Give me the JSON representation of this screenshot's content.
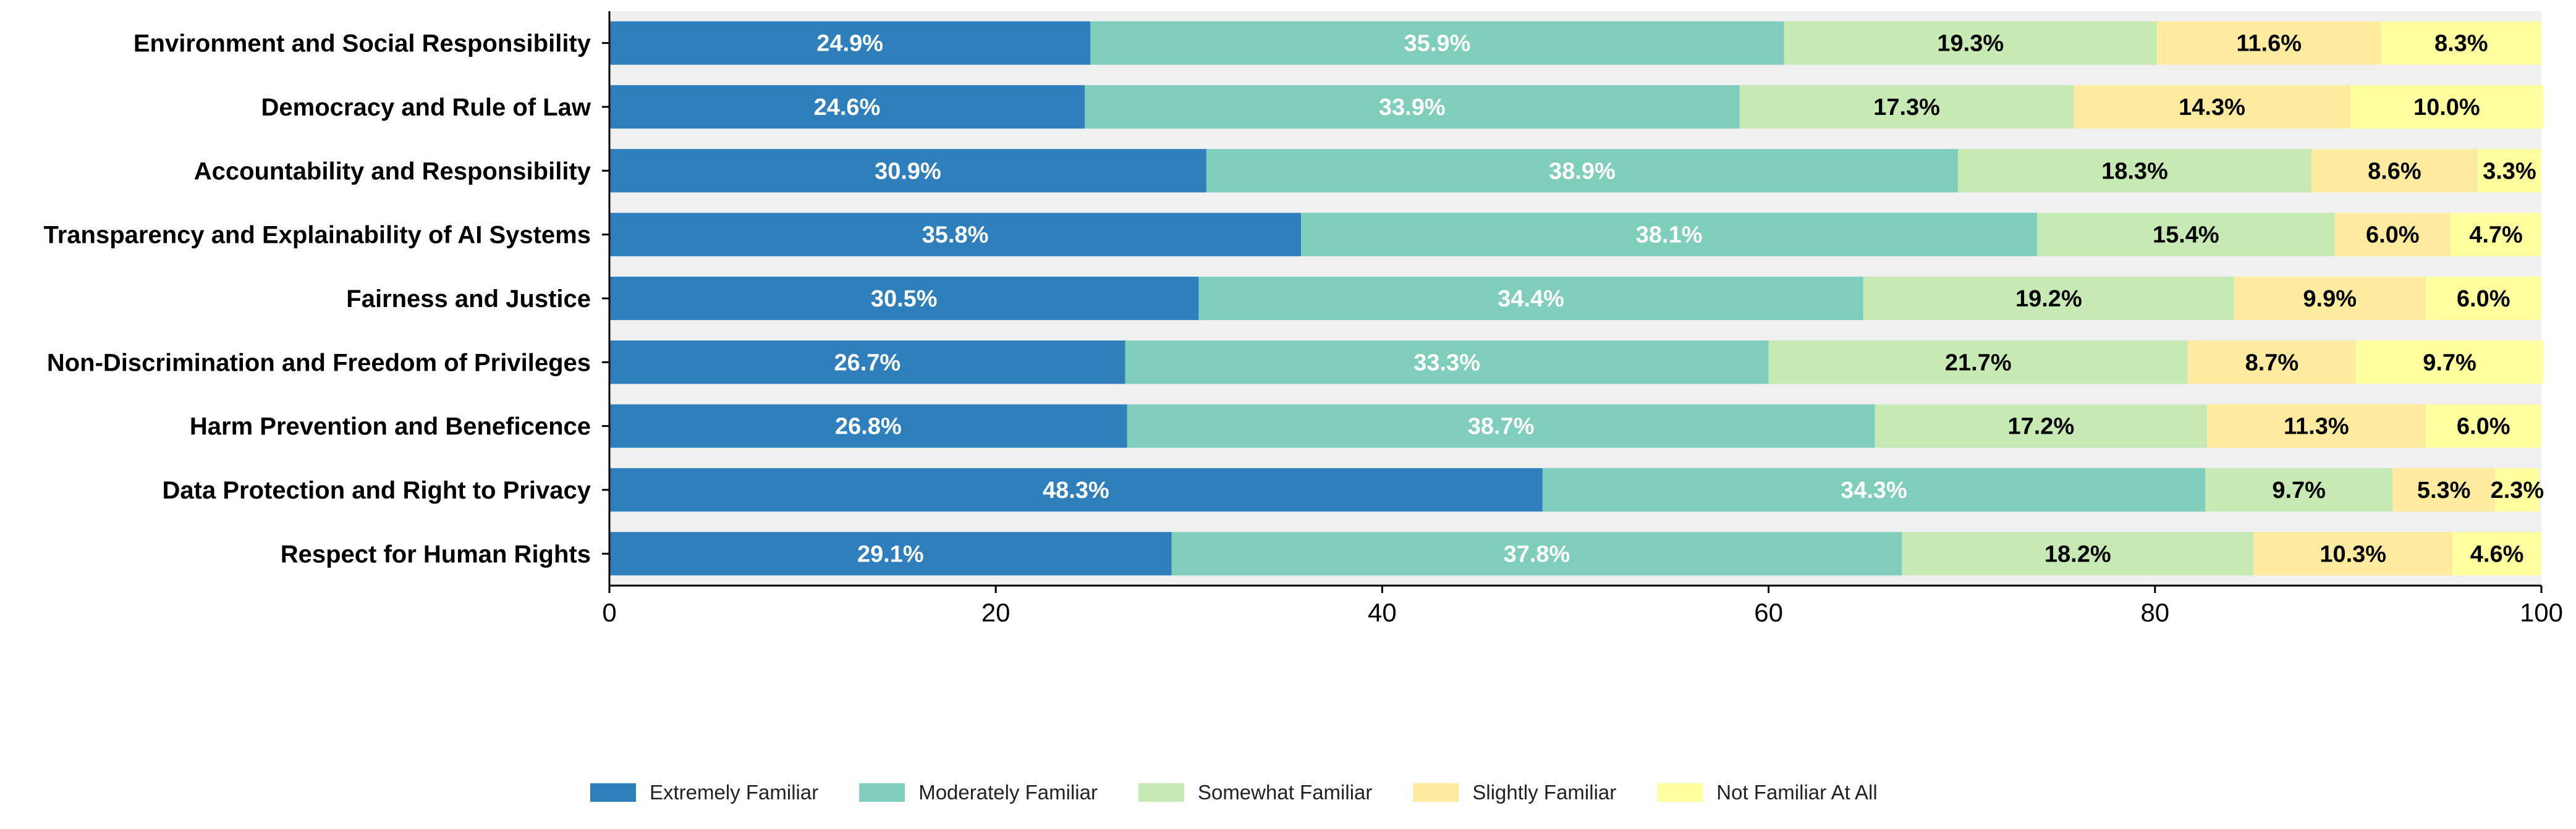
{
  "chart_data": {
    "type": "bar",
    "orientation": "horizontal",
    "stacked": true,
    "title": "",
    "xlabel": "",
    "ylabel": "",
    "xlim": [
      0,
      100
    ],
    "x_ticks": [
      0,
      20,
      40,
      60,
      80,
      100
    ],
    "legend_position": "bottom-center",
    "grid": false,
    "categories": [
      "Environment and Social Responsibility",
      "Democracy and Rule of Law",
      "Accountability and Responsibility",
      "Transparency and Explainability of AI Systems",
      "Fairness and Justice",
      "Non-Discrimination and Freedom of Privileges",
      "Harm Prevention and Beneficence",
      "Data Protection and Right to Privacy",
      "Respect for Human Rights"
    ],
    "series": [
      {
        "name": "Extremely Familiar",
        "color": "#2e7fbc",
        "label_color": "#ffffff",
        "values": [
          24.9,
          24.6,
          30.9,
          35.8,
          30.5,
          26.7,
          26.8,
          48.3,
          29.1
        ],
        "labels": [
          "24.9%",
          "24.6%",
          "30.9%",
          "35.8%",
          "30.5%",
          "26.7%",
          "26.8%",
          "48.3%",
          "29.1%"
        ]
      },
      {
        "name": "Moderately Familiar",
        "color": "#7fcdbb",
        "label_color": "#ffffff",
        "values": [
          35.9,
          33.9,
          38.9,
          38.1,
          34.4,
          33.3,
          38.7,
          34.3,
          37.8
        ],
        "labels": [
          "35.9%",
          "33.9%",
          "38.9%",
          "38.1%",
          "34.4%",
          "33.3%",
          "38.7%",
          "34.3%",
          "37.8%"
        ]
      },
      {
        "name": "Somewhat Familiar",
        "color": "#c7e9b4",
        "label_color": "#000000",
        "values": [
          19.3,
          17.3,
          18.3,
          15.4,
          19.2,
          21.7,
          17.2,
          9.7,
          18.2
        ],
        "labels": [
          "19.3%",
          "17.3%",
          "18.3%",
          "15.4%",
          "19.2%",
          "21.7%",
          "17.2%",
          "9.7%",
          "18.2%"
        ]
      },
      {
        "name": "Slightly Familiar",
        "color": "#feeb9f",
        "label_color": "#000000",
        "values": [
          11.6,
          14.3,
          8.6,
          6.0,
          9.9,
          8.7,
          11.3,
          5.3,
          10.3
        ],
        "labels": [
          "11.6%",
          "14.3%",
          "8.6%",
          "6.0%",
          "9.9%",
          "8.7%",
          "11.3%",
          "5.3%",
          "10.3%"
        ]
      },
      {
        "name": "Not Familiar At All",
        "color": "#ffffa0",
        "label_color": "#000000",
        "values": [
          8.3,
          10.0,
          3.3,
          4.7,
          6.0,
          9.7,
          6.0,
          2.3,
          4.6
        ],
        "labels": [
          "8.3%",
          "10.0%",
          "3.3%",
          "4.7%",
          "6.0%",
          "9.7%",
          "6.0%",
          "2.3%",
          "4.6%"
        ]
      }
    ],
    "background_color": "#f0f0f0"
  }
}
